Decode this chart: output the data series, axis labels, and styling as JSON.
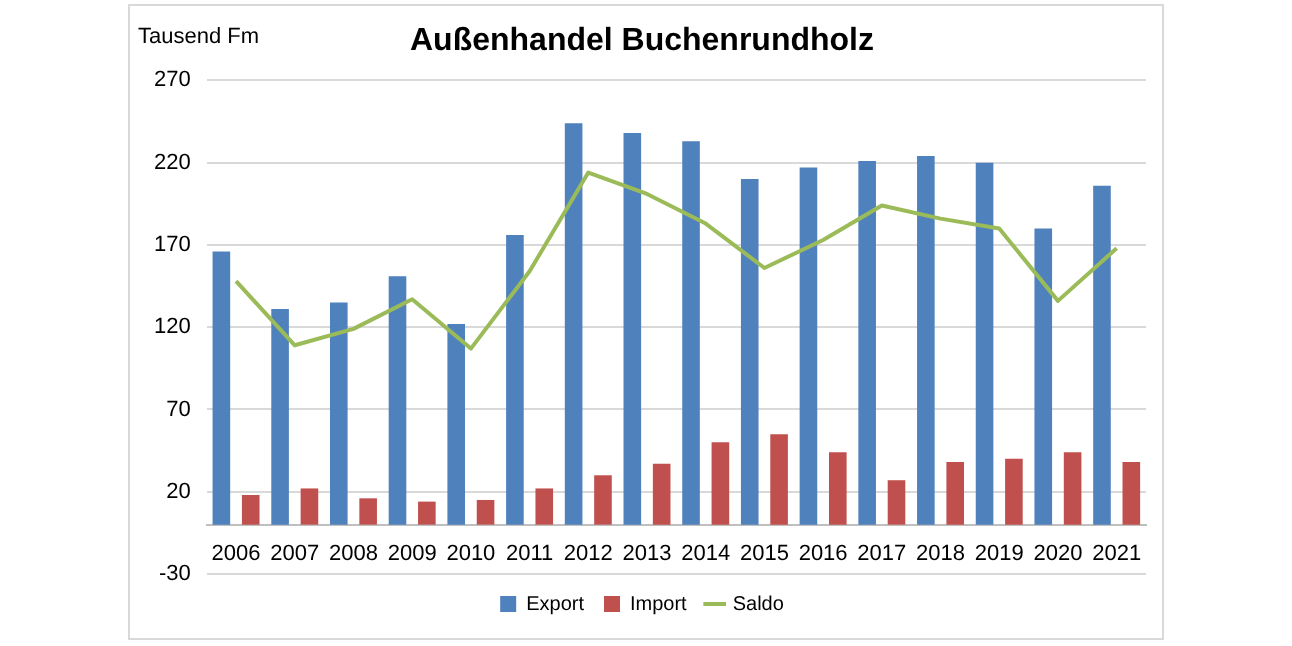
{
  "chart_data": {
    "type": "bar",
    "title": "Außenhandel Buchenrundholz",
    "ylabel": "Tausend Fm",
    "categories": [
      "2006",
      "2007",
      "2008",
      "2009",
      "2010",
      "2011",
      "2012",
      "2013",
      "2014",
      "2015",
      "2016",
      "2017",
      "2018",
      "2019",
      "2020",
      "2021"
    ],
    "series": [
      {
        "name": "Export",
        "color": "#4f81bd",
        "values": [
          166,
          131,
          135,
          151,
          122,
          176,
          244,
          238,
          233,
          210,
          217,
          221,
          224,
          220,
          180,
          206
        ]
      },
      {
        "name": "Import",
        "color": "#c0504d",
        "values": [
          18,
          22,
          16,
          14,
          15,
          22,
          30,
          37,
          50,
          55,
          44,
          27,
          38,
          40,
          44,
          38
        ]
      },
      {
        "name": "Saldo",
        "type": "line",
        "color": "#9bbb59",
        "values": [
          148,
          109,
          119,
          137,
          107,
          154,
          214,
          201,
          183,
          156,
          173,
          194,
          186,
          180,
          136,
          168
        ]
      }
    ],
    "ylim": [
      -30,
      270
    ],
    "yticks": [
      -30,
      20,
      70,
      120,
      170,
      220,
      270
    ],
    "grid": "y",
    "legend": "bottom",
    "marker": "none"
  }
}
